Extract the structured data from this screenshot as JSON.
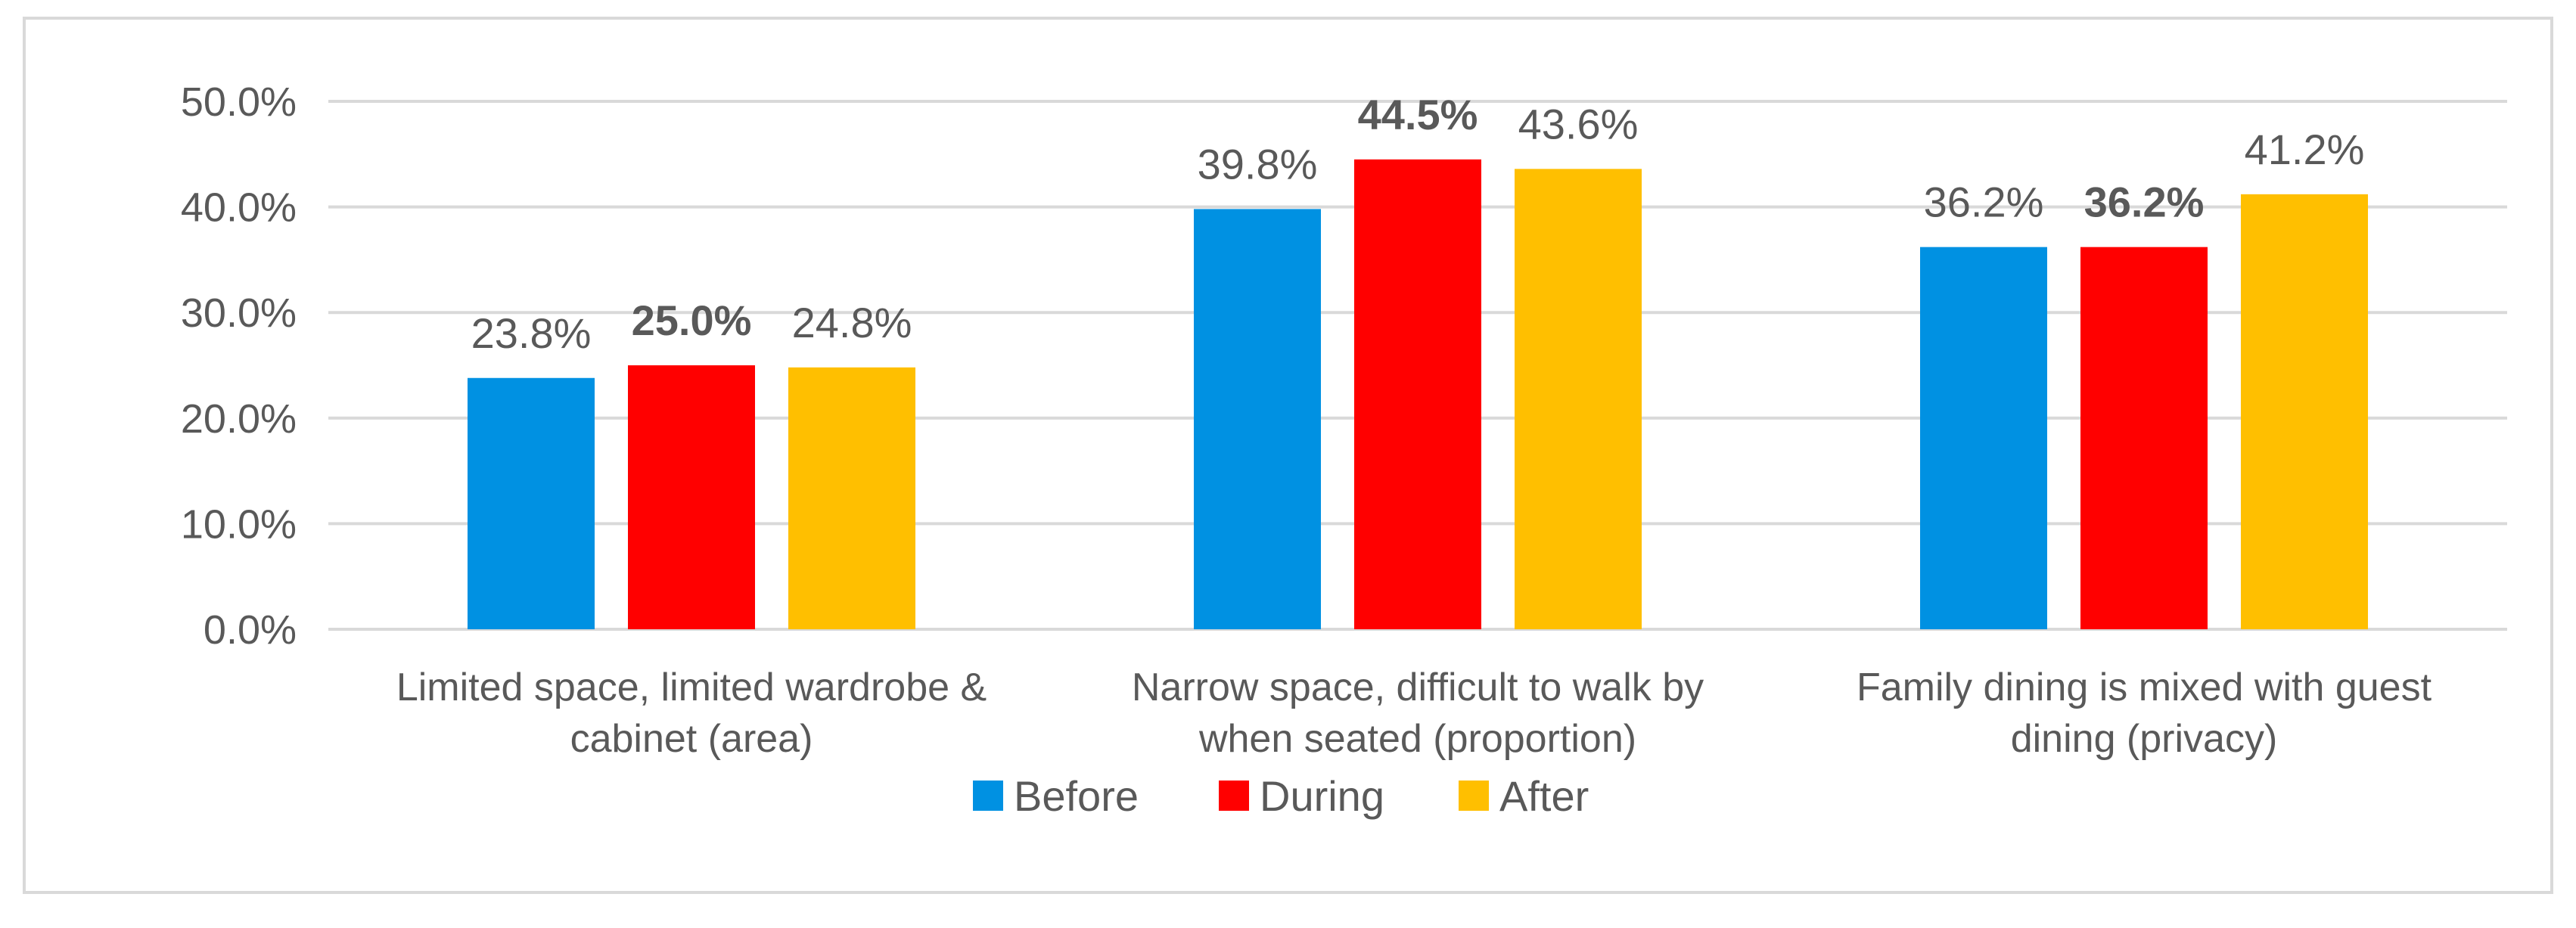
{
  "chart_data": {
    "type": "bar",
    "title": "",
    "xlabel": "",
    "ylabel": "",
    "ylim": [
      0,
      50
    ],
    "y_ticks": [
      "0.0%",
      "10.0%",
      "20.0%",
      "30.0%",
      "40.0%",
      "50.0%"
    ],
    "y_tick_values": [
      0,
      10,
      20,
      30,
      40,
      50
    ],
    "grid": true,
    "legend_position": "bottom",
    "categories": [
      [
        "Limited space, limited wardrobe &",
        "cabinet (area)"
      ],
      [
        "Narrow space, difficult to walk by",
        "when seated (proportion)"
      ],
      [
        "Family dining is mixed with guest",
        "dining (privacy)"
      ]
    ],
    "series": [
      {
        "name": "Before",
        "color": "#0091E2",
        "values": [
          23.8,
          39.8,
          36.2
        ],
        "labels": [
          "23.8%",
          "39.8%",
          "36.2%"
        ],
        "bold_labels": [
          false,
          false,
          false
        ]
      },
      {
        "name": "During",
        "color": "#FF0000",
        "values": [
          25.0,
          44.5,
          36.2
        ],
        "labels": [
          "25.0%",
          "44.5%",
          "36.2%"
        ],
        "bold_labels": [
          true,
          true,
          true
        ]
      },
      {
        "name": "After",
        "color": "#FFBF00",
        "values": [
          24.8,
          43.6,
          41.2
        ],
        "labels": [
          "24.8%",
          "43.6%",
          "41.2%"
        ],
        "bold_labels": [
          false,
          false,
          false
        ]
      }
    ]
  },
  "colors": {
    "gridline": "#d9d9d9",
    "axis_text": "#595959",
    "frame_border": "#d9d9d9"
  }
}
